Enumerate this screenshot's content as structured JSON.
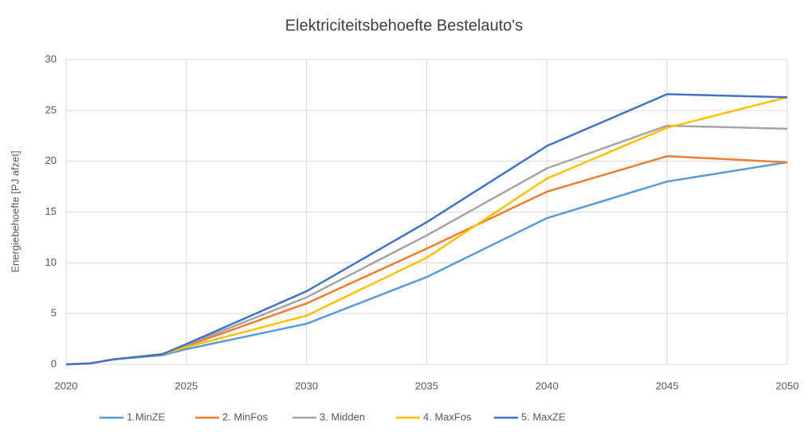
{
  "chart_data": {
    "type": "line",
    "title": "Elektriciteitsbehoefte Bestelauto's",
    "y_label": "Energiebehoefte [PJ afzet]",
    "x": [
      2020,
      2021,
      2022,
      2024,
      2025,
      2030,
      2035,
      2040,
      2045,
      2050
    ],
    "series": [
      {
        "name": "1.MinZE",
        "color": "#5b9bd5",
        "values": [
          0,
          0.1,
          0.5,
          0.9,
          1.5,
          4.0,
          8.6,
          14.4,
          18.0,
          19.9
        ]
      },
      {
        "name": "2. MinFos",
        "color": "#ed7d31",
        "values": [
          0,
          0.1,
          0.5,
          1.0,
          1.8,
          6.0,
          11.4,
          17.0,
          20.5,
          19.9
        ]
      },
      {
        "name": "3. Midden",
        "color": "#a5a5a5",
        "values": [
          0,
          0.1,
          0.5,
          1.0,
          1.9,
          6.6,
          12.7,
          19.3,
          23.5,
          23.2
        ]
      },
      {
        "name": "4. MaxFos",
        "color": "#ffc000",
        "values": [
          0,
          0.1,
          0.5,
          1.0,
          1.7,
          4.8,
          10.5,
          18.3,
          23.3,
          26.3
        ]
      },
      {
        "name": "5. MaxZE",
        "color": "#4472c4",
        "values": [
          0,
          0.1,
          0.5,
          1.0,
          2.0,
          7.2,
          14.0,
          21.5,
          26.6,
          26.3
        ]
      }
    ],
    "xlim": [
      2020,
      2050
    ],
    "xticks": [
      2020,
      2025,
      2030,
      2035,
      2040,
      2045,
      2050
    ],
    "ylim": [
      0,
      30
    ],
    "yticks": [
      0,
      5,
      10,
      15,
      20,
      25,
      30
    ],
    "grid": true,
    "legend": "bottom"
  }
}
